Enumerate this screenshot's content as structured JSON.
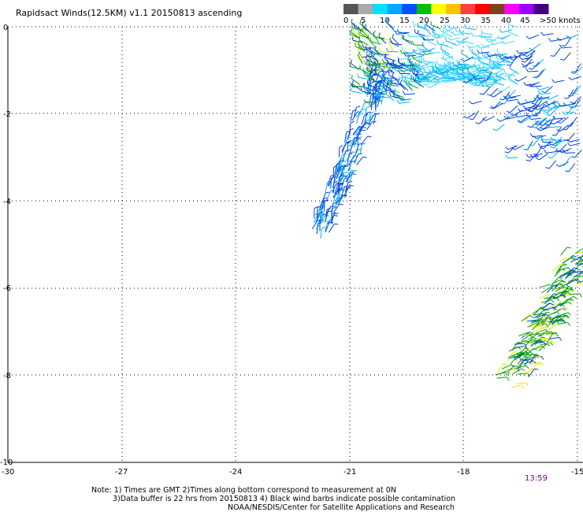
{
  "title": "Rapidsact Winds(12.5KM) v1.1 20150813 ascending",
  "legend": {
    "labels": [
      "0",
      "5",
      "10",
      "15",
      "20",
      "25",
      "30",
      "35",
      "40",
      "45",
      ">50 knots"
    ],
    "colors": [
      "#555555",
      "#aaaaaa",
      "#00e0ff",
      "#00a8ff",
      "#0050ff",
      "#00c000",
      "#ffff00",
      "#ffc000",
      "#ff4040",
      "#ff0000",
      "#804020",
      "#ff00ff",
      "#a000ff",
      "#400080"
    ]
  },
  "axes": {
    "y_labels": [
      "0",
      "-2",
      "-4",
      "-6",
      "-8",
      "-10"
    ],
    "x_labels": [
      "-30",
      "-27",
      "-24",
      "-21",
      "-18",
      "-15"
    ]
  },
  "timestamp": "13:59",
  "notes": [
    "Note: 1) Times are GMT 2)Times along bottom correspond to measurement at 0N",
    "3)Data buffer is 22 hrs from 20150813 4) Black wind barbs indicate possible contamination",
    "NOAA/NESDIS/Center for Satellite Applications and Research"
  ],
  "colors": {
    "grid": "#000000",
    "timestamp": "#800080",
    "barb_dark_blue": "#0040e0",
    "barb_light_blue": "#00b0f0",
    "barb_cyan": "#40d8ff",
    "barb_green": "#00a000",
    "barb_yellow": "#e8e800"
  }
}
